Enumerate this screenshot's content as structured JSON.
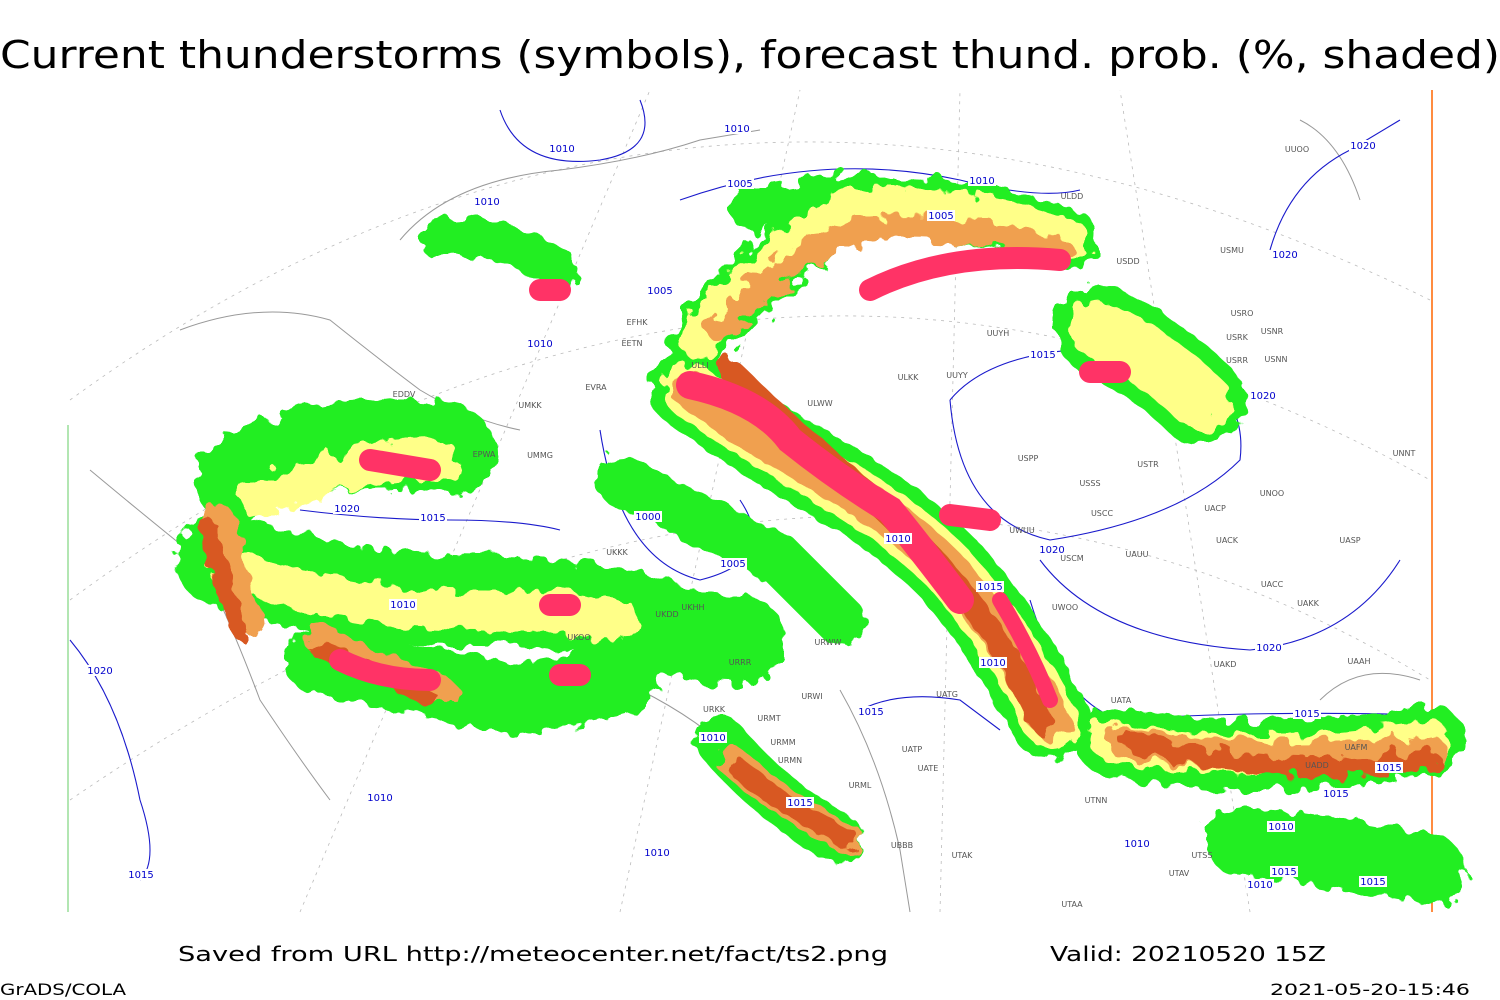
{
  "title": "Current thunderstorms (symbols), forecast thund. prob. (%, shaded)",
  "footer": {
    "source": "Saved from URL http://meteocenter.net/fact/ts2.png",
    "valid": "Valid: 20210520 15Z",
    "software": "GrADS/COLA",
    "timestamp": "2021-05-20-15:46"
  },
  "isobars": [
    1010,
    1010,
    1005,
    1010,
    1005,
    1010,
    1005,
    1010,
    1015,
    1020,
    1020,
    1020,
    1020,
    1000,
    1020,
    1015,
    1010,
    1005,
    1010,
    1015,
    1010,
    1020,
    1015,
    1020,
    1015,
    1010,
    1015,
    1015,
    1010,
    1015,
    1010,
    1010,
    1010,
    1015,
    1015,
    1010,
    1015
  ],
  "stations": [
    "ULDD",
    "USDD",
    "USMU",
    "USRO",
    "USRK",
    "USNR",
    "USRR",
    "USNN",
    "UUYH",
    "ULKK",
    "UUYY",
    "USPP",
    "USSS",
    "USCC",
    "UWUU",
    "USCM",
    "UAUU",
    "UACK",
    "UASP",
    "UNOO",
    "UACP",
    "UACC",
    "UAKK",
    "UWOO",
    "UAKD",
    "UAAH",
    "UATA",
    "UATG",
    "UATP",
    "UATE",
    "URML",
    "URMT",
    "URMM",
    "URMN",
    "URRR",
    "URWW",
    "URWI",
    "URKK",
    "UKOO",
    "UKHH",
    "UKDD",
    "UKKK",
    "EPWA",
    "UUOO",
    "UNNT",
    "UBBB",
    "UTAK",
    "UTSS",
    "UTAV",
    "UTAA",
    "UTNN",
    "ULWW",
    "ULLI",
    "EFHK",
    "EETN",
    "EVRA",
    "UMKK",
    "UMMG",
    "EDDV",
    "USTR",
    "UAFM",
    "UADD"
  ]
}
